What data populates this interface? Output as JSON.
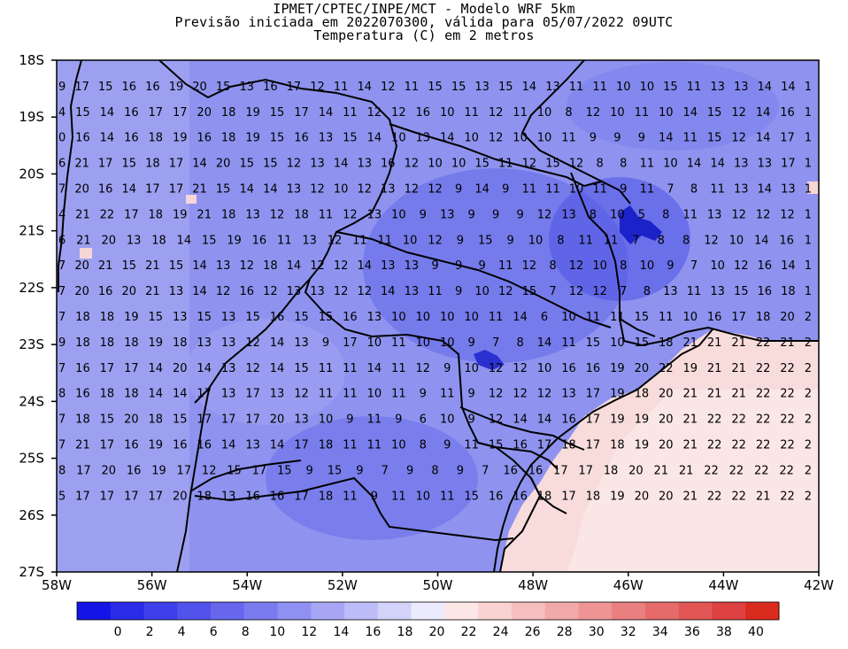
{
  "header": {
    "line1": "IPMET/CPTEC/INPE/MCT - Modelo WRF 5km",
    "line2": "Previsão iniciada em 2022070300, válida para 05/07/2022 09UTC",
    "line3": "Temperatura (C) em 2 metros"
  },
  "map": {
    "lat_labels": [
      "18S",
      "19S",
      "20S",
      "21S",
      "22S",
      "23S",
      "24S",
      "25S",
      "26S",
      "27S"
    ],
    "lon_labels": [
      "58W",
      "56W",
      "54W",
      "52W",
      "50W",
      "48W",
      "46W",
      "44W",
      "42W"
    ],
    "value_rows": [
      [
        "9",
        "17",
        "15",
        "16",
        "16",
        "19",
        "20",
        "15",
        "13",
        "16",
        "17",
        "12",
        "11",
        "14",
        "12",
        "11",
        "15",
        "15",
        "13",
        "15",
        "14",
        "13",
        "11",
        "11",
        "10",
        "10",
        "15",
        "11",
        "13",
        "13",
        "14",
        "14",
        "1"
      ],
      [
        "4",
        "15",
        "14",
        "16",
        "17",
        "17",
        "20",
        "18",
        "19",
        "15",
        "17",
        "14",
        "11",
        "12",
        "12",
        "16",
        "10",
        "11",
        "12",
        "11",
        "10",
        "8",
        "12",
        "10",
        "11",
        "10",
        "14",
        "15",
        "12",
        "14",
        "16",
        "1"
      ],
      [
        "0",
        "16",
        "14",
        "16",
        "18",
        "19",
        "16",
        "18",
        "19",
        "15",
        "16",
        "13",
        "15",
        "14",
        "10",
        "13",
        "14",
        "10",
        "12",
        "10",
        "10",
        "11",
        "9",
        "9",
        "9",
        "14",
        "11",
        "15",
        "12",
        "14",
        "17",
        "1"
      ],
      [
        "6",
        "21",
        "17",
        "15",
        "18",
        "17",
        "14",
        "20",
        "15",
        "15",
        "12",
        "13",
        "14",
        "13",
        "16",
        "12",
        "10",
        "10",
        "15",
        "11",
        "12",
        "15",
        "12",
        "8",
        "8",
        "11",
        "10",
        "14",
        "14",
        "13",
        "13",
        "17",
        "1"
      ],
      [
        "7",
        "20",
        "16",
        "14",
        "17",
        "17",
        "21",
        "15",
        "14",
        "14",
        "13",
        "12",
        "10",
        "12",
        "13",
        "12",
        "12",
        "9",
        "14",
        "9",
        "11",
        "11",
        "10",
        "11",
        "9",
        "11",
        "7",
        "8",
        "11",
        "13",
        "14",
        "13",
        "1"
      ],
      [
        "4",
        "21",
        "22",
        "17",
        "18",
        "19",
        "21",
        "18",
        "13",
        "12",
        "18",
        "11",
        "12",
        "13",
        "10",
        "9",
        "13",
        "9",
        "9",
        "9",
        "12",
        "13",
        "8",
        "10",
        "5",
        "8",
        "11",
        "13",
        "12",
        "12",
        "12",
        "1"
      ],
      [
        "6",
        "21",
        "20",
        "13",
        "18",
        "14",
        "15",
        "19",
        "16",
        "11",
        "13",
        "12",
        "11",
        "11",
        "10",
        "12",
        "9",
        "15",
        "9",
        "10",
        "8",
        "11",
        "11",
        "7",
        "8",
        "8",
        "12",
        "10",
        "14",
        "16",
        "1"
      ],
      [
        "7",
        "20",
        "21",
        "15",
        "21",
        "15",
        "14",
        "13",
        "12",
        "18",
        "14",
        "12",
        "12",
        "14",
        "13",
        "13",
        "9",
        "9",
        "9",
        "11",
        "12",
        "8",
        "12",
        "10",
        "8",
        "10",
        "9",
        "7",
        "10",
        "12",
        "16",
        "14",
        "1"
      ],
      [
        "7",
        "20",
        "16",
        "20",
        "21",
        "13",
        "14",
        "12",
        "16",
        "12",
        "13",
        "13",
        "12",
        "12",
        "14",
        "13",
        "11",
        "9",
        "10",
        "12",
        "15",
        "7",
        "12",
        "12",
        "7",
        "8",
        "13",
        "11",
        "13",
        "15",
        "16",
        "18",
        "1"
      ],
      [
        "7",
        "18",
        "18",
        "19",
        "15",
        "13",
        "15",
        "13",
        "15",
        "16",
        "15",
        "15",
        "16",
        "13",
        "10",
        "10",
        "10",
        "10",
        "11",
        "14",
        "6",
        "10",
        "11",
        "11",
        "15",
        "11",
        "10",
        "16",
        "17",
        "18",
        "20",
        "2"
      ],
      [
        "9",
        "18",
        "18",
        "18",
        "19",
        "18",
        "13",
        "13",
        "12",
        "14",
        "13",
        "9",
        "17",
        "10",
        "11",
        "10",
        "10",
        "9",
        "7",
        "8",
        "14",
        "11",
        "15",
        "10",
        "15",
        "18",
        "21",
        "21",
        "21",
        "22",
        "21",
        "2"
      ],
      [
        "7",
        "16",
        "17",
        "17",
        "14",
        "20",
        "14",
        "13",
        "12",
        "14",
        "15",
        "11",
        "11",
        "14",
        "11",
        "12",
        "9",
        "10",
        "12",
        "12",
        "10",
        "16",
        "16",
        "19",
        "20",
        "22",
        "19",
        "21",
        "21",
        "22",
        "22",
        "2"
      ],
      [
        "8",
        "16",
        "18",
        "18",
        "14",
        "14",
        "17",
        "13",
        "17",
        "13",
        "12",
        "11",
        "11",
        "10",
        "11",
        "9",
        "11",
        "9",
        "12",
        "12",
        "12",
        "13",
        "17",
        "19",
        "18",
        "20",
        "21",
        "21",
        "21",
        "22",
        "22",
        "2"
      ],
      [
        "7",
        "18",
        "15",
        "20",
        "18",
        "15",
        "17",
        "17",
        "17",
        "20",
        "13",
        "10",
        "9",
        "11",
        "9",
        "6",
        "10",
        "9",
        "12",
        "14",
        "14",
        "16",
        "17",
        "19",
        "19",
        "20",
        "21",
        "22",
        "22",
        "22",
        "22",
        "2"
      ],
      [
        "7",
        "21",
        "17",
        "16",
        "19",
        "16",
        "16",
        "14",
        "13",
        "14",
        "17",
        "18",
        "11",
        "11",
        "10",
        "8",
        "9",
        "11",
        "15",
        "16",
        "17",
        "18",
        "17",
        "18",
        "19",
        "20",
        "21",
        "22",
        "22",
        "22",
        "22",
        "2"
      ],
      [
        "8",
        "17",
        "20",
        "16",
        "19",
        "17",
        "12",
        "15",
        "17",
        "15",
        "9",
        "15",
        "9",
        "7",
        "9",
        "8",
        "9",
        "7",
        "16",
        "16",
        "17",
        "17",
        "18",
        "20",
        "21",
        "21",
        "22",
        "22",
        "22",
        "22",
        "2"
      ],
      [
        "5",
        "17",
        "17",
        "17",
        "17",
        "20",
        "18",
        "13",
        "16",
        "16",
        "17",
        "18",
        "11",
        "9",
        "11",
        "10",
        "11",
        "15",
        "16",
        "16",
        "18",
        "17",
        "18",
        "19",
        "20",
        "20",
        "21",
        "22",
        "22",
        "21",
        "22",
        "2"
      ]
    ]
  },
  "colorbar": {
    "labels": [
      "0",
      "2",
      "4",
      "6",
      "8",
      "10",
      "12",
      "14",
      "16",
      "18",
      "20",
      "22",
      "24",
      "26",
      "28",
      "30",
      "32",
      "34",
      "36",
      "38",
      "40"
    ],
    "colors": [
      "#1414e6",
      "#2a2ae8",
      "#3e3eea",
      "#5252ec",
      "#6767ee",
      "#7b7bf0",
      "#9090f2",
      "#a6a6f4",
      "#bcbcf7",
      "#d3d3fa",
      "#ebebfd",
      "#fce6e6",
      "#f9d2d2",
      "#f6bebe",
      "#f2a9a9",
      "#ee9494",
      "#ea7f7f",
      "#e66a6a",
      "#e25656",
      "#de4141",
      "#da2b1f"
    ]
  }
}
